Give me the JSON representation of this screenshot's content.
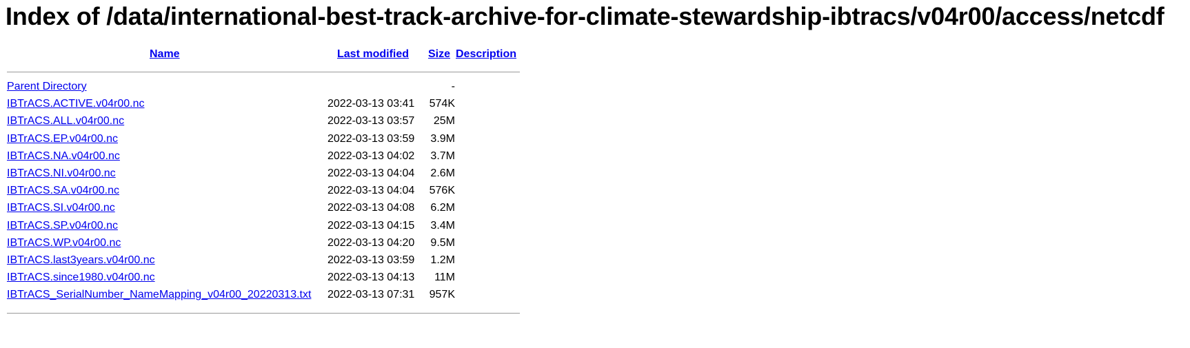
{
  "page_title": "Index of /data/international-best-track-archive-for-climate-stewardship-ibtracs/v04r00/access/netcdf",
  "columns": {
    "name": "Name",
    "last_modified": "Last modified",
    "size": "Size",
    "description": "Description"
  },
  "parent": {
    "label": "Parent Directory",
    "size": "-"
  },
  "files": [
    {
      "name": "IBTrACS.ACTIVE.v04r00.nc",
      "modified": "2022-03-13 03:41",
      "size": "574K"
    },
    {
      "name": "IBTrACS.ALL.v04r00.nc",
      "modified": "2022-03-13 03:57",
      "size": " 25M"
    },
    {
      "name": "IBTrACS.EP.v04r00.nc",
      "modified": "2022-03-13 03:59",
      "size": "3.9M"
    },
    {
      "name": "IBTrACS.NA.v04r00.nc",
      "modified": "2022-03-13 04:02",
      "size": "3.7M"
    },
    {
      "name": "IBTrACS.NI.v04r00.nc",
      "modified": "2022-03-13 04:04",
      "size": "2.6M"
    },
    {
      "name": "IBTrACS.SA.v04r00.nc",
      "modified": "2022-03-13 04:04",
      "size": "576K"
    },
    {
      "name": "IBTrACS.SI.v04r00.nc",
      "modified": "2022-03-13 04:08",
      "size": "6.2M"
    },
    {
      "name": "IBTrACS.SP.v04r00.nc",
      "modified": "2022-03-13 04:15",
      "size": "3.4M"
    },
    {
      "name": "IBTrACS.WP.v04r00.nc",
      "modified": "2022-03-13 04:20",
      "size": "9.5M"
    },
    {
      "name": "IBTrACS.last3years.v04r00.nc",
      "modified": "2022-03-13 03:59",
      "size": "1.2M"
    },
    {
      "name": "IBTrACS.since1980.v04r00.nc",
      "modified": "2022-03-13 04:13",
      "size": " 11M"
    },
    {
      "name": "IBTrACS_SerialNumber_NameMapping_v04r00_20220313.txt",
      "modified": "2022-03-13 07:31",
      "size": "957K"
    }
  ],
  "colors": {
    "link": "#0000ee",
    "rule": "#999999",
    "text": "#000000",
    "background": "#ffffff"
  }
}
